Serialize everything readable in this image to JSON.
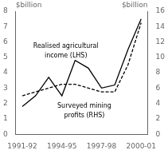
{
  "chart_data": {
    "type": "line",
    "x": [
      1991.5,
      1992.5,
      1993.5,
      1994.5,
      1995.5,
      1996.5,
      1997.5,
      1998.5,
      1999.5,
      2000.5
    ],
    "xlim": [
      1991.0,
      2001.0
    ],
    "xticks": [
      {
        "value": 1991.5,
        "label": "1991-92"
      },
      {
        "value": 1994.5,
        "label": "1994-95"
      },
      {
        "value": 1997.5,
        "label": "1997-98"
      },
      {
        "value": 2000.5,
        "label": "2000-01"
      }
    ],
    "ylim": [
      0,
      8
    ],
    "yticks": [
      0,
      1,
      2,
      3,
      4,
      5,
      6,
      7,
      8
    ],
    "y2lim": [
      0,
      16
    ],
    "y2ticks": [
      0,
      2,
      4,
      6,
      8,
      10,
      12,
      14,
      16
    ],
    "ylabel": "$billion",
    "y2label": "$billion",
    "grid": false,
    "series": [
      {
        "values": [
          1.8,
          2.5,
          3.7,
          2.5,
          4.8,
          4.3,
          3.0,
          3.2,
          5.5,
          7.5
        ],
        "color": "#000000",
        "line_style": "solid"
      },
      {
        "values": [
          5.0,
          5.5,
          6.0,
          6.5,
          6.5,
          6.0,
          5.5,
          5.5,
          9.0,
          14.5
        ],
        "color": "#000000",
        "line_style": "dashed",
        "axis": "y2"
      }
    ],
    "annotations": [
      {
        "text": "Realised agricultural",
        "x": 1994.8,
        "y": 5.5
      },
      {
        "text": "income (LHS)",
        "x": 1994.8,
        "y": 4.9
      },
      {
        "text": "Surveyed mining",
        "x": 1996.2,
        "y": 1.6
      },
      {
        "text": "profits (RHS)",
        "x": 1996.2,
        "y": 1.0
      }
    ]
  }
}
